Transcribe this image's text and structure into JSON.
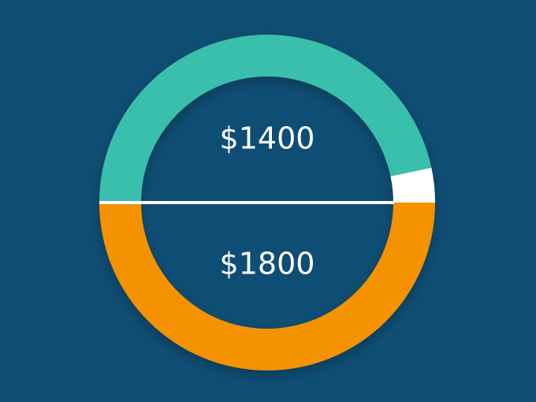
{
  "chart_data": {
    "type": "pie",
    "variant": "split-donut",
    "background": "#0f4e74",
    "divider_color": "#ffffff",
    "halves": [
      {
        "position": "top",
        "label": "$1400",
        "value": 1400,
        "max": 1500,
        "fill_color": "#3bbfad",
        "remainder_color": "#ffffff"
      },
      {
        "position": "bottom",
        "label": "$1800",
        "value": 1800,
        "max": 1800,
        "fill_color": "#f59200",
        "remainder_color": "#ffffff"
      }
    ]
  }
}
